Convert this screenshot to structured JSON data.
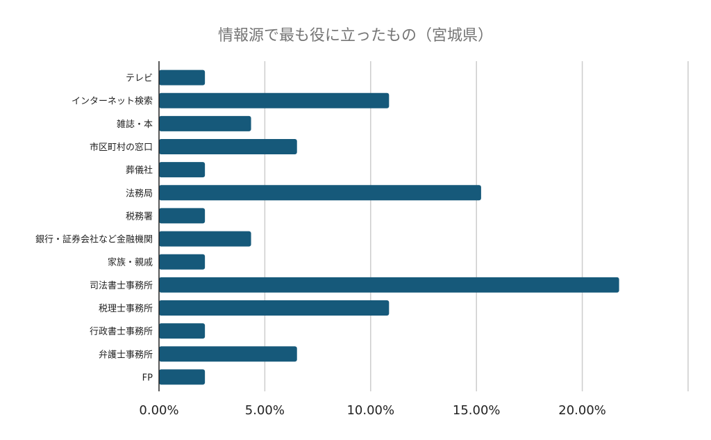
{
  "chart_data": {
    "type": "bar",
    "orientation": "horizontal",
    "title": "情報源で最も役に立ったもの（宮城県）",
    "categories": [
      "テレビ",
      "インターネット検索",
      "雑誌・本",
      "市区町村の窓口",
      "葬儀社",
      "法務局",
      "税務署",
      "銀行・証券会社など金融機関",
      "家族・親戚",
      "司法書士事務所",
      "税理士事務所",
      "行政書士事務所",
      "弁護士事務所",
      "FP"
    ],
    "values": [
      2.17,
      10.87,
      4.35,
      6.52,
      2.17,
      15.22,
      2.17,
      4.35,
      2.17,
      21.74,
      10.87,
      2.17,
      6.52,
      2.17
    ],
    "xlim": [
      0,
      25
    ],
    "x_ticks": [
      0,
      5,
      10,
      15,
      20
    ],
    "tick_labels": [
      "0.00%",
      "5.00%",
      "10.00%",
      "15.00%",
      "20.00%"
    ],
    "grid": true,
    "bar_color": "#16597a",
    "grid_color": "#cccccc",
    "title_color": "#757575",
    "text_color": "#222222"
  }
}
